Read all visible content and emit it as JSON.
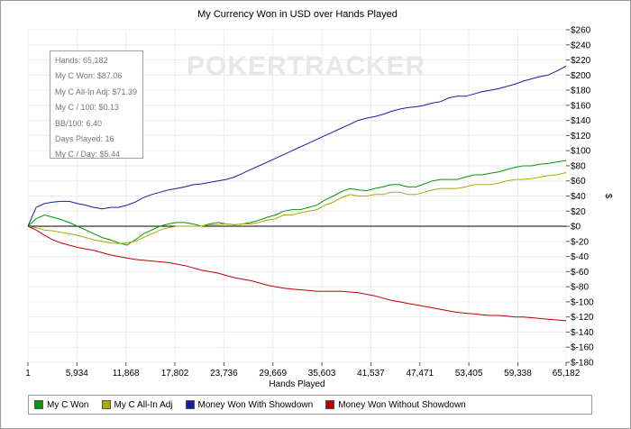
{
  "chart_data": {
    "type": "line",
    "title": "My Currency Won in USD over Hands Played",
    "xlabel": "Hands Played",
    "ylabel": "$",
    "watermark": "POKERTRACKER",
    "xlim": [
      1,
      65182
    ],
    "ylim": [
      -180,
      260
    ],
    "x_ticks": [
      1,
      5934,
      11868,
      17802,
      23736,
      29669,
      35603,
      41537,
      47471,
      53405,
      59338,
      65182
    ],
    "x_tick_labels": [
      "1",
      "5,934",
      "11,868",
      "17,802",
      "23,736",
      "29,669",
      "35,603",
      "41,537",
      "47,471",
      "53,405",
      "59,338",
      "65,182"
    ],
    "y_ticks": [
      260,
      240,
      220,
      200,
      180,
      160,
      140,
      120,
      100,
      80,
      60,
      40,
      20,
      0,
      -20,
      -40,
      -60,
      -80,
      -100,
      -120,
      -140,
      -160,
      -180
    ],
    "y_tick_labels": [
      "$260",
      "$240",
      "$220",
      "$200",
      "$180",
      "$160",
      "$140",
      "$120",
      "$100",
      "$80",
      "$60",
      "$40",
      "$20",
      "$0",
      "$-20",
      "$-40",
      "$-60",
      "$-80",
      "$-100",
      "$-120",
      "$-140",
      "$-160",
      "$-180"
    ],
    "grid": true,
    "legend_position": "bottom",
    "x": [
      1,
      1000,
      2000,
      3000,
      4000,
      5000,
      6000,
      7000,
      8000,
      9000,
      10000,
      11000,
      12000,
      13000,
      14000,
      15000,
      16000,
      17000,
      18000,
      19000,
      20000,
      21000,
      22000,
      23000,
      24000,
      25000,
      26000,
      27000,
      28000,
      29000,
      30000,
      31000,
      32000,
      33000,
      34000,
      35000,
      36000,
      37000,
      38000,
      39000,
      40000,
      41000,
      42000,
      43000,
      44000,
      45000,
      46000,
      47000,
      48000,
      49000,
      50000,
      51000,
      52000,
      53000,
      54000,
      55000,
      56000,
      57000,
      58000,
      59000,
      60000,
      61000,
      62000,
      63000,
      64000,
      65182
    ],
    "series": [
      {
        "name": "My C Won",
        "color": "#009900",
        "values": [
          0,
          10,
          15,
          12,
          9,
          5,
          0,
          -5,
          -10,
          -15,
          -18,
          -22,
          -25,
          -18,
          -10,
          -5,
          0,
          3,
          5,
          5,
          3,
          0,
          3,
          5,
          3,
          2,
          3,
          5,
          8,
          12,
          15,
          20,
          22,
          22,
          25,
          28,
          35,
          40,
          46,
          50,
          48,
          47,
          50,
          52,
          55,
          55,
          52,
          52,
          56,
          60,
          62,
          62,
          62,
          65,
          68,
          68,
          70,
          72,
          75,
          78,
          80,
          80,
          82,
          83,
          85,
          87
        ]
      },
      {
        "name": "My C All-In Adj",
        "color": "#aaaa00",
        "values": [
          0,
          -2,
          -5,
          -6,
          -8,
          -10,
          -12,
          -15,
          -18,
          -20,
          -22,
          -23,
          -22,
          -20,
          -15,
          -10,
          -5,
          -2,
          0,
          0,
          0,
          0,
          2,
          2,
          3,
          2,
          3,
          3,
          5,
          8,
          10,
          15,
          15,
          18,
          20,
          22,
          28,
          32,
          38,
          42,
          40,
          40,
          42,
          42,
          45,
          45,
          42,
          42,
          45,
          48,
          50,
          50,
          50,
          52,
          55,
          55,
          55,
          57,
          60,
          62,
          62,
          63,
          65,
          67,
          68,
          71
        ]
      },
      {
        "name": "Money Won With Showdown",
        "color": "#1a1aa6",
        "values": [
          0,
          25,
          30,
          32,
          33,
          33,
          30,
          28,
          25,
          23,
          25,
          25,
          28,
          32,
          38,
          42,
          45,
          48,
          50,
          52,
          55,
          56,
          58,
          60,
          62,
          65,
          70,
          75,
          80,
          85,
          90,
          95,
          100,
          105,
          110,
          115,
          120,
          125,
          130,
          135,
          140,
          143,
          145,
          148,
          152,
          155,
          157,
          158,
          160,
          163,
          165,
          170,
          172,
          172,
          175,
          178,
          180,
          182,
          185,
          188,
          192,
          195,
          198,
          200,
          205,
          212
        ]
      },
      {
        "name": "Money Won Without Showdown",
        "color": "#bb0000",
        "values": [
          0,
          -5,
          -12,
          -18,
          -22,
          -25,
          -28,
          -30,
          -32,
          -35,
          -38,
          -40,
          -42,
          -44,
          -45,
          -46,
          -47,
          -48,
          -50,
          -52,
          -55,
          -58,
          -60,
          -62,
          -65,
          -68,
          -70,
          -72,
          -75,
          -78,
          -80,
          -82,
          -83,
          -84,
          -85,
          -86,
          -86,
          -86,
          -86,
          -87,
          -88,
          -90,
          -92,
          -95,
          -98,
          -100,
          -102,
          -104,
          -106,
          -108,
          -110,
          -112,
          -114,
          -115,
          -116,
          -117,
          -118,
          -118,
          -119,
          -120,
          -120,
          -121,
          -122,
          -123,
          -124,
          -125
        ]
      }
    ]
  },
  "stats": {
    "lines": [
      "Hands: 65,182",
      "My C Won: $87.06",
      "My C All-In Adj: $71.39",
      "My C / 100: $0.13",
      "BB/100: 6.40",
      "Days Played: 16",
      "My C / Day: $5.44"
    ]
  }
}
